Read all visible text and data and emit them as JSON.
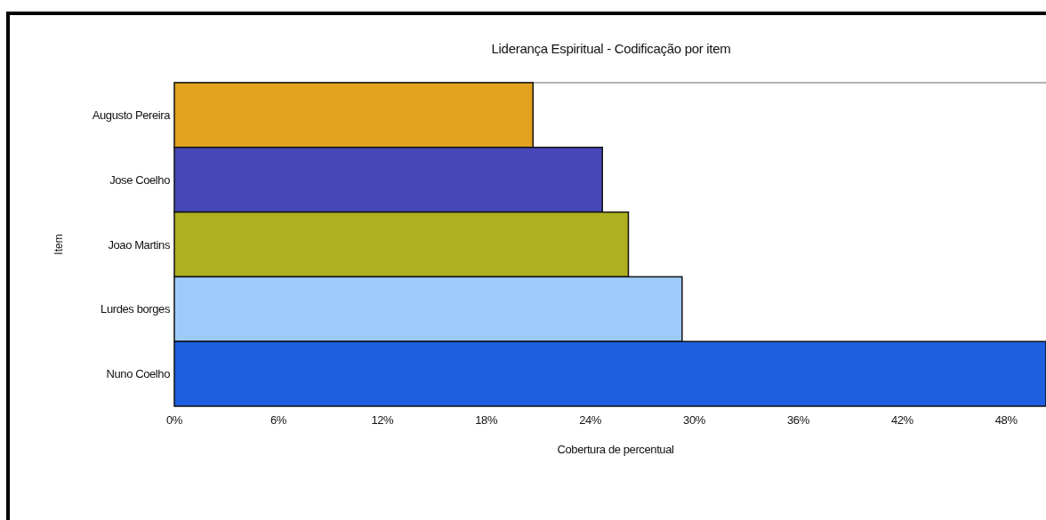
{
  "chart_data": {
    "type": "bar",
    "orientation": "horizontal",
    "title": "Liderança Espiritual - Codificação por item",
    "xlabel": "Cobertura de percentual",
    "ylabel": "Item",
    "categories": [
      "Augusto Pereira",
      "Jose Coelho",
      "Joao Martins",
      "Lurdes borges",
      "Nuno Coelho"
    ],
    "values": [
      20.7,
      24.7,
      26.2,
      29.3,
      50.3
    ],
    "colors": [
      "#e3a120",
      "#4747b9",
      "#afb020",
      "#9ccbfb",
      "#1e5fe0"
    ],
    "xlim": [
      0,
      50.3
    ],
    "xticks": [
      {
        "value": 0,
        "label": "0%"
      },
      {
        "value": 6,
        "label": "6%"
      },
      {
        "value": 12,
        "label": "12%"
      },
      {
        "value": 18,
        "label": "18%"
      },
      {
        "value": 24,
        "label": "24%"
      },
      {
        "value": 30,
        "label": "30%"
      },
      {
        "value": 36,
        "label": "36%"
      },
      {
        "value": 42,
        "label": "42%"
      },
      {
        "value": 48,
        "label": "48%"
      }
    ]
  }
}
